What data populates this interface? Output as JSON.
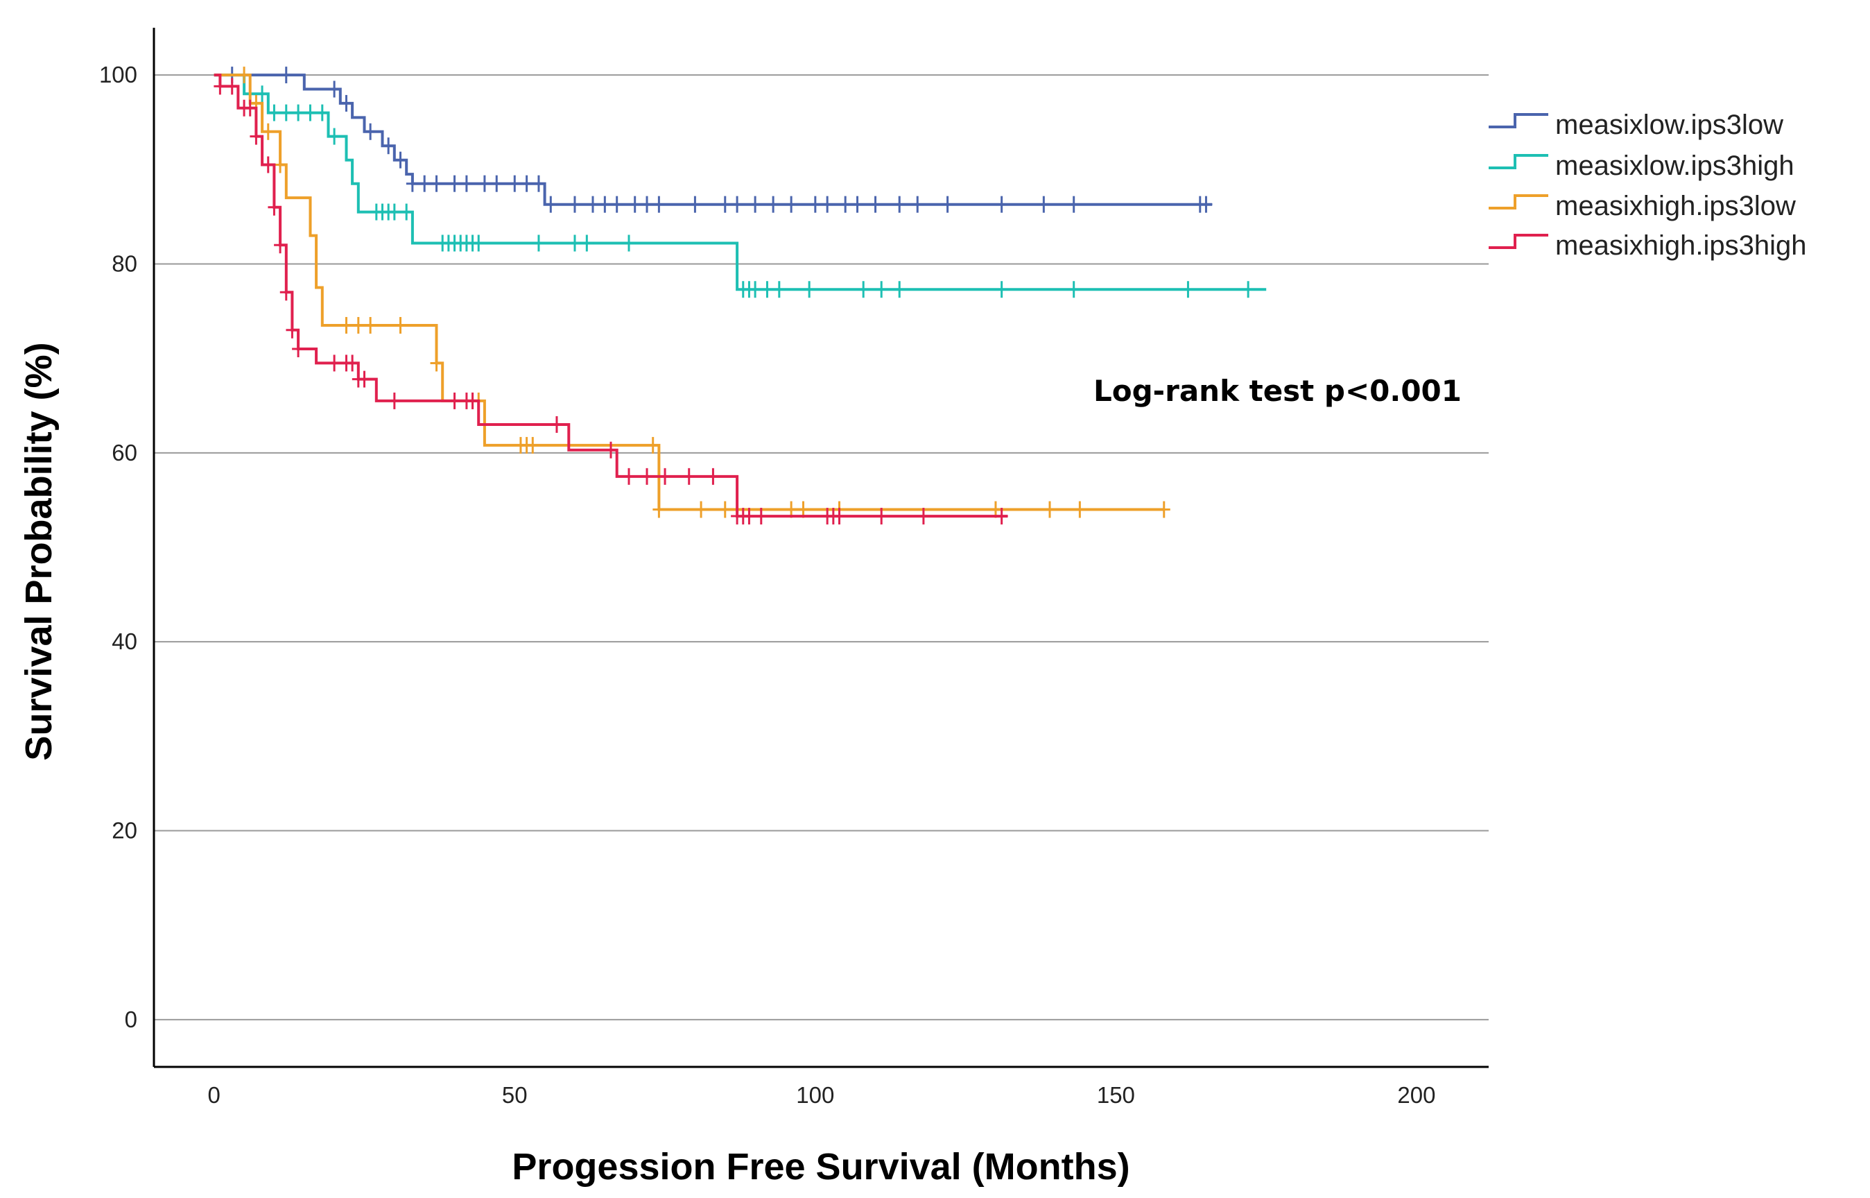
{
  "chart_data": {
    "type": "line",
    "subtype": "kaplan-meier",
    "title": "",
    "xlabel": "Progession Free Survival (Months)",
    "ylabel": "Survival Probability (%)",
    "xlim": [
      -10,
      212
    ],
    "ylim": [
      -5,
      105
    ],
    "xticks": [
      "0",
      "50",
      "100",
      "150",
      "200"
    ],
    "yticks": [
      "0",
      "20",
      "40",
      "60",
      "80",
      "100"
    ],
    "grid": "horizontal",
    "legend_position": "top-right",
    "annotation": "Log-rank test p<0.001",
    "series": [
      {
        "name": "measixlow.ips3low",
        "color": "#4a64ad",
        "steps": [
          [
            0,
            100
          ],
          [
            15,
            100
          ],
          [
            15,
            98.5
          ],
          [
            21,
            98.5
          ],
          [
            21,
            97
          ],
          [
            23,
            97
          ],
          [
            23,
            95.5
          ],
          [
            25,
            95.5
          ],
          [
            25,
            94
          ],
          [
            28,
            94
          ],
          [
            28,
            92.5
          ],
          [
            30,
            92.5
          ],
          [
            30,
            91
          ],
          [
            32,
            91
          ],
          [
            32,
            89.5
          ],
          [
            33,
            89.5
          ],
          [
            33,
            88.5
          ],
          [
            55,
            88.5
          ],
          [
            55,
            86.3
          ],
          [
            166,
            86.3
          ]
        ],
        "censors": [
          3,
          12,
          20,
          22,
          26,
          29,
          31,
          33,
          35,
          37,
          40,
          42,
          45,
          47,
          50,
          52,
          54,
          56,
          60,
          63,
          65,
          67,
          70,
          72,
          74,
          80,
          85,
          87,
          90,
          93,
          96,
          100,
          102,
          105,
          107,
          110,
          114,
          117,
          122,
          131,
          138,
          143,
          164,
          165
        ]
      },
      {
        "name": "measixlow.ips3high",
        "color": "#1dbfb3",
        "steps": [
          [
            0,
            100
          ],
          [
            5,
            100
          ],
          [
            5,
            98
          ],
          [
            9,
            98
          ],
          [
            9,
            96
          ],
          [
            19,
            96
          ],
          [
            19,
            93.5
          ],
          [
            22,
            93.5
          ],
          [
            22,
            91
          ],
          [
            23,
            91
          ],
          [
            23,
            88.5
          ],
          [
            24,
            88.5
          ],
          [
            24,
            85.5
          ],
          [
            33,
            85.5
          ],
          [
            33,
            82.2
          ],
          [
            87,
            82.2
          ],
          [
            87,
            77.3
          ],
          [
            175,
            77.3
          ]
        ],
        "censors": [
          8,
          10,
          12,
          14,
          16,
          18,
          20,
          27,
          28,
          29,
          30,
          32,
          38,
          39,
          40,
          41,
          42,
          43,
          44,
          54,
          60,
          62,
          69,
          88,
          89,
          90,
          92,
          94,
          99,
          108,
          111,
          114,
          131,
          143,
          162,
          172
        ]
      },
      {
        "name": "measixhigh.ips3low",
        "color": "#eea02a",
        "steps": [
          [
            0,
            100
          ],
          [
            6,
            100
          ],
          [
            6,
            97
          ],
          [
            8,
            97
          ],
          [
            8,
            94
          ],
          [
            11,
            94
          ],
          [
            11,
            90.5
          ],
          [
            12,
            90.5
          ],
          [
            12,
            87
          ],
          [
            16,
            87
          ],
          [
            16,
            83
          ],
          [
            17,
            83
          ],
          [
            17,
            77.5
          ],
          [
            18,
            77.5
          ],
          [
            18,
            73.5
          ],
          [
            37,
            73.5
          ],
          [
            37,
            69.5
          ],
          [
            38,
            69.5
          ],
          [
            38,
            65.5
          ],
          [
            45,
            65.5
          ],
          [
            45,
            60.8
          ],
          [
            74,
            60.8
          ],
          [
            74,
            54
          ],
          [
            158,
            54
          ]
        ],
        "censors": [
          5,
          7,
          9,
          11,
          22,
          24,
          26,
          31,
          37,
          43,
          44,
          51,
          52,
          53,
          73,
          74,
          81,
          85,
          96,
          98,
          104,
          130,
          139,
          144,
          158
        ]
      },
      {
        "name": "measixhigh.ips3high",
        "color": "#e0204e",
        "steps": [
          [
            0,
            100
          ],
          [
            1,
            100
          ],
          [
            1,
            98.8
          ],
          [
            4,
            98.8
          ],
          [
            4,
            96.5
          ],
          [
            7,
            96.5
          ],
          [
            7,
            93.5
          ],
          [
            8,
            93.5
          ],
          [
            8,
            90.5
          ],
          [
            10,
            90.5
          ],
          [
            10,
            86
          ],
          [
            11,
            86
          ],
          [
            11,
            82
          ],
          [
            12,
            82
          ],
          [
            12,
            77
          ],
          [
            13,
            77
          ],
          [
            13,
            73
          ],
          [
            14,
            73
          ],
          [
            14,
            71
          ],
          [
            17,
            71
          ],
          [
            17,
            69.5
          ],
          [
            24,
            69.5
          ],
          [
            24,
            67.8
          ],
          [
            27,
            67.8
          ],
          [
            27,
            65.5
          ],
          [
            44,
            65.5
          ],
          [
            44,
            63
          ],
          [
            59,
            63
          ],
          [
            59,
            60.3
          ],
          [
            67,
            60.3
          ],
          [
            67,
            57.5
          ],
          [
            87,
            57.5
          ],
          [
            87,
            53.3
          ],
          [
            132,
            53.3
          ]
        ],
        "censors": [
          1,
          3,
          5,
          6,
          7,
          9,
          10,
          11,
          12,
          13,
          14,
          20,
          22,
          23,
          24,
          25,
          30,
          40,
          42,
          43,
          57,
          66,
          69,
          72,
          75,
          79,
          83,
          87,
          88,
          89,
          91,
          102,
          103,
          104,
          111,
          118,
          131
        ]
      }
    ]
  }
}
